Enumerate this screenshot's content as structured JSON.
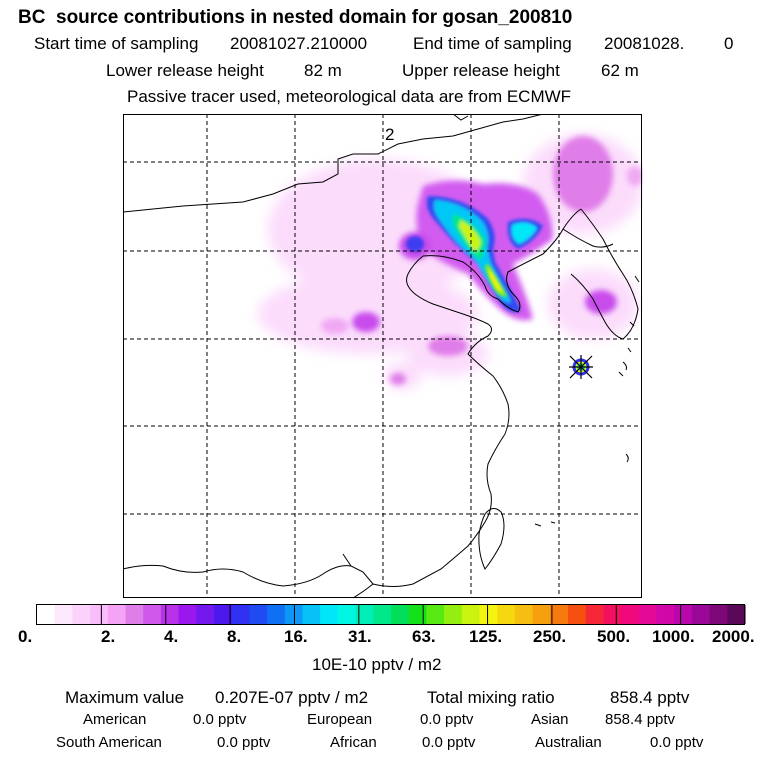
{
  "header": {
    "title": "BC  source contributions in nested domain for gosan_200810",
    "start_label": "Start time of sampling",
    "start_value": "20081027.210000",
    "end_label": "End time of sampling",
    "end_value": "20081028.",
    "end_suffix": "0",
    "lower_label": "Lower release height",
    "lower_value": "82 m",
    "upper_label": "Upper release height",
    "upper_value": "62 m",
    "tracer_note": "Passive tracer used, meteorological data are from ECMWF"
  },
  "map": {
    "grid_label": "2",
    "receptor": "gosan"
  },
  "colorbar": {
    "tick_labels": [
      "0.",
      "2.",
      "4.",
      "8.",
      "16.",
      "31.",
      "63.",
      "125.",
      "250.",
      "500.",
      "1000.",
      "2000."
    ],
    "unit_label": "10E-10 pptv / m2",
    "colors": [
      "#ffffff",
      "#fde8fd",
      "#fbd2fb",
      "#f9bdf9",
      "#f5a3f5",
      "#e07ee9",
      "#cf58ea",
      "#b832ea",
      "#9a18ee",
      "#7418ee",
      "#4c18ee",
      "#3030f0",
      "#1e4cf2",
      "#1070f4",
      "#0c98f4",
      "#06c2f6",
      "#00e8f8",
      "#00f6e2",
      "#00eeb6",
      "#00e88a",
      "#00de5a",
      "#14e01a",
      "#58e812",
      "#94ee10",
      "#caf410",
      "#f4f410",
      "#f6d810",
      "#f6be10",
      "#f6a010",
      "#f67a10",
      "#f65010",
      "#f62838",
      "#f41060",
      "#f0087c",
      "#e40896",
      "#d008a8",
      "#b808ac",
      "#9a0898",
      "#7c0878",
      "#5a0858"
    ]
  },
  "summary": {
    "max_label": "Maximum value",
    "max_value": "0.207E-07 pptv / m2",
    "total_label": "Total mixing ratio",
    "total_value": "858.4 pptv",
    "regions": [
      {
        "name": "American",
        "value": "0.0 pptv"
      },
      {
        "name": "European",
        "value": "0.0 pptv"
      },
      {
        "name": "Asian",
        "value": "858.4 pptv"
      },
      {
        "name": "South American",
        "value": "0.0 pptv"
      },
      {
        "name": "African",
        "value": "0.0 pptv"
      },
      {
        "name": "Australian",
        "value": "0.0 pptv"
      }
    ]
  }
}
